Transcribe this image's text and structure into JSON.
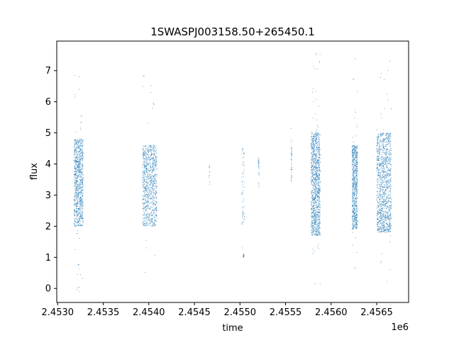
{
  "chart_data": {
    "type": "scatter",
    "title": "1SWASPJ003158.50+265450.1",
    "xlabel": "time",
    "ylabel": "flux",
    "x_offset_label": "1e6",
    "xlim": [
      2452990,
      2456850
    ],
    "ylim": [
      -0.45,
      7.95
    ],
    "x_ticks": [
      2453000,
      2453500,
      2454000,
      2454500,
      2455000,
      2455500,
      2456000,
      2456500
    ],
    "x_tick_labels": [
      "2.4530",
      "2.4535",
      "2.4540",
      "2.4545",
      "2.4550",
      "2.4555",
      "2.4560",
      "2.4565"
    ],
    "y_ticks": [
      0,
      1,
      2,
      3,
      4,
      5,
      6,
      7
    ],
    "y_tick_labels": [
      "0",
      "1",
      "2",
      "3",
      "4",
      "5",
      "6",
      "7"
    ],
    "grid": false,
    "marker_color": "#1f77b4",
    "clusters": [
      {
        "x_start": 2453180,
        "x_end": 2453280,
        "y_low": 2.0,
        "y_high": 4.8,
        "y_min": -0.1,
        "y_max": 7.2,
        "density": 900
      },
      {
        "x_start": 2453930,
        "x_end": 2454090,
        "y_low": 2.0,
        "y_high": 4.6,
        "y_min": 0.4,
        "y_max": 7.1,
        "density": 900
      },
      {
        "x_start": 2454660,
        "x_end": 2454670,
        "y_low": 3.3,
        "y_high": 4.1,
        "y_min": 1.4,
        "y_max": 4.1,
        "density": 12
      },
      {
        "x_start": 2455020,
        "x_end": 2455050,
        "y_low": 2.0,
        "y_high": 4.7,
        "y_min": 1.0,
        "y_max": 4.7,
        "density": 60
      },
      {
        "x_start": 2455200,
        "x_end": 2455210,
        "y_low": 3.2,
        "y_high": 4.2,
        "y_min": 3.2,
        "y_max": 4.2,
        "density": 25
      },
      {
        "x_start": 2455560,
        "x_end": 2455570,
        "y_low": 3.4,
        "y_high": 4.8,
        "y_min": 2.8,
        "y_max": 5.2,
        "density": 40
      },
      {
        "x_start": 2455780,
        "x_end": 2455880,
        "y_low": 1.7,
        "y_high": 5.0,
        "y_min": 0.05,
        "y_max": 7.6,
        "density": 1100
      },
      {
        "x_start": 2456230,
        "x_end": 2456290,
        "y_low": 1.9,
        "y_high": 4.6,
        "y_min": 0.6,
        "y_max": 7.5,
        "density": 700
      },
      {
        "x_start": 2456500,
        "x_end": 2456660,
        "y_low": 1.8,
        "y_high": 5.0,
        "y_min": 0.15,
        "y_max": 7.4,
        "density": 1200
      }
    ],
    "flux_dips": [
      {
        "x_start": 2455035,
        "x_end": 2455045,
        "y_low": 1.0,
        "y_high": 1.1,
        "density": 15
      }
    ]
  }
}
